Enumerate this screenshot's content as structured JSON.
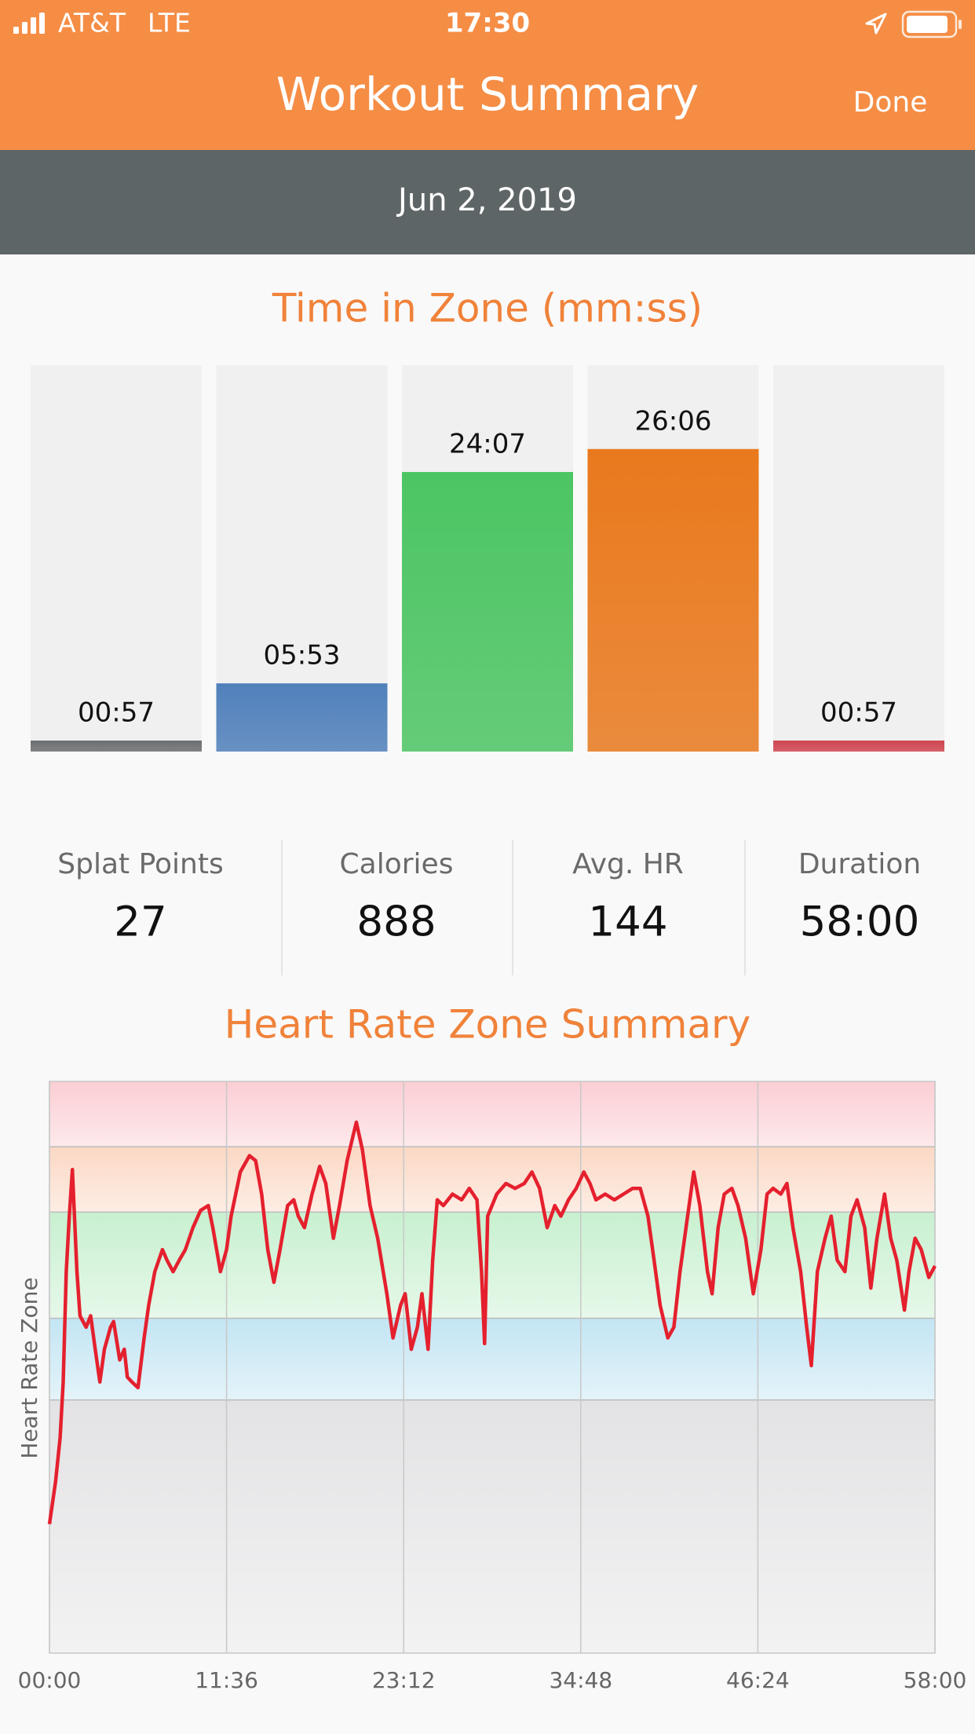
{
  "status_bar": {
    "carrier": "AT&T",
    "network": "LTE",
    "time": "17:30"
  },
  "header": {
    "title": "Workout Summary",
    "done": "Done"
  },
  "date": "Jun 2, 2019",
  "stats": [
    {
      "label": "Splat Points",
      "value": 27
    },
    {
      "label": "Calories",
      "value": 888
    },
    {
      "label": "Avg. HR",
      "value": 144
    },
    {
      "label": "Duration",
      "value": "58:00"
    }
  ],
  "chart_data": [
    {
      "type": "bar",
      "title": "Time in Zone (mm:ss)",
      "values": [
        57,
        353,
        1447,
        1566,
        57
      ],
      "value_labels": [
        "00:57",
        "05:53",
        "24:07",
        "26:06",
        "00:57"
      ],
      "colors": [
        "#6c6f71",
        "#5080bb",
        "#4cc563",
        "#e9791d",
        "#cf4651"
      ],
      "ylim": [
        0,
        2000
      ]
    },
    {
      "type": "line",
      "title": "Heart Rate Zone Summary",
      "y_label": "Heart Rate Zone",
      "color": "#e5202e",
      "xlim": [
        0,
        58
      ],
      "ylim": [
        30,
        100
      ],
      "grid": true,
      "xticks": [
        {
          "value": 0,
          "label": "00:00"
        },
        {
          "value": 11.6,
          "label": "11:36"
        },
        {
          "value": 23.2,
          "label": "23:12"
        },
        {
          "value": 34.8,
          "label": "34:48"
        },
        {
          "value": 46.4,
          "label": "46:24"
        },
        {
          "value": 58,
          "label": "58:00"
        }
      ],
      "zones": [
        {
          "from": 30,
          "to": 61,
          "color": "#e3e3e5"
        },
        {
          "from": 61,
          "to": 71,
          "color": "#c3e5f3"
        },
        {
          "from": 71,
          "to": 84,
          "color": "#c8f0d0"
        },
        {
          "from": 84,
          "to": 92,
          "color": "#fbd8c4"
        },
        {
          "from": 92,
          "to": 100,
          "color": "#fbced4"
        }
      ],
      "x": [
        0,
        0.4,
        0.7,
        0.9,
        1.1,
        1.3,
        1.5,
        1.8,
        2.0,
        2.4,
        2.7,
        3.0,
        3.3,
        3.6,
        4.0,
        4.2,
        4.6,
        4.9,
        5.1,
        5.4,
        5.8,
        6.2,
        6.5,
        6.9,
        7.4,
        7.7,
        8.1,
        8.5,
        8.9,
        9.4,
        9.9,
        10.4,
        10.7,
        11.2,
        11.6,
        11.9,
        12.5,
        13.1,
        13.5,
        13.9,
        14.3,
        14.7,
        15.1,
        15.6,
        16.0,
        16.3,
        16.7,
        17.2,
        17.7,
        18.1,
        18.6,
        19.0,
        19.5,
        20.1,
        20.5,
        21.0,
        21.5,
        22.1,
        22.5,
        23.0,
        23.3,
        23.7,
        24.1,
        24.4,
        24.8,
        25.1,
        25.4,
        25.8,
        26.4,
        27.0,
        27.5,
        28.0,
        28.3,
        28.5,
        28.7,
        29.3,
        29.9,
        30.5,
        31.1,
        31.6,
        32.1,
        32.6,
        33.1,
        33.5,
        34.0,
        34.5,
        35.0,
        35.4,
        35.8,
        36.4,
        37.0,
        37.6,
        38.2,
        38.7,
        39.2,
        39.6,
        40.0,
        40.5,
        40.9,
        41.3,
        41.8,
        42.2,
        42.6,
        43.1,
        43.4,
        43.8,
        44.2,
        44.7,
        45.1,
        45.6,
        46.1,
        46.6,
        47.0,
        47.4,
        47.9,
        48.3,
        48.7,
        49.2,
        49.6,
        49.9,
        50.3,
        50.8,
        51.2,
        51.6,
        52.1,
        52.5,
        52.9,
        53.4,
        53.8,
        54.2,
        54.7,
        55.1,
        55.5,
        56.0,
        56.3,
        56.7,
        57.1,
        57.6,
        58.0
      ],
      "values": [
        45.8,
        51.0,
        56.4,
        63.2,
        76.7,
        83.5,
        89.2,
        76.7,
        71.3,
        69.9,
        71.3,
        67.2,
        63.2,
        67.2,
        69.9,
        70.6,
        65.9,
        67.2,
        63.8,
        63.2,
        62.5,
        68.6,
        72.6,
        76.7,
        79.4,
        78.1,
        76.7,
        78.1,
        79.4,
        82.1,
        84.2,
        84.8,
        82.1,
        76.7,
        79.4,
        83.5,
        88.9,
        90.9,
        90.3,
        86.2,
        79.4,
        75.4,
        79.4,
        84.8,
        85.5,
        83.5,
        82.1,
        86.2,
        89.6,
        87.5,
        80.8,
        84.8,
        90.3,
        95.0,
        91.6,
        84.8,
        80.8,
        74.0,
        68.6,
        72.6,
        74.0,
        67.2,
        69.9,
        74.0,
        67.2,
        78.1,
        85.5,
        84.8,
        86.2,
        85.5,
        86.9,
        85.5,
        76.7,
        67.9,
        83.5,
        86.2,
        87.5,
        86.9,
        87.5,
        88.9,
        86.9,
        82.1,
        84.8,
        83.5,
        85.5,
        86.9,
        88.9,
        87.5,
        85.5,
        86.2,
        85.5,
        86.2,
        86.9,
        86.9,
        83.5,
        78.1,
        72.6,
        68.6,
        69.9,
        76.7,
        83.5,
        88.9,
        84.8,
        76.7,
        74.0,
        82.1,
        86.2,
        86.9,
        84.8,
        80.8,
        74.0,
        79.4,
        86.2,
        86.9,
        86.2,
        87.5,
        82.1,
        76.7,
        69.9,
        65.2,
        76.7,
        80.8,
        83.5,
        78.1,
        76.7,
        83.5,
        85.5,
        82.1,
        74.7,
        80.8,
        86.2,
        80.8,
        78.1,
        72.0,
        76.7,
        80.8,
        79.4,
        76.0,
        77.4
      ]
    }
  ]
}
